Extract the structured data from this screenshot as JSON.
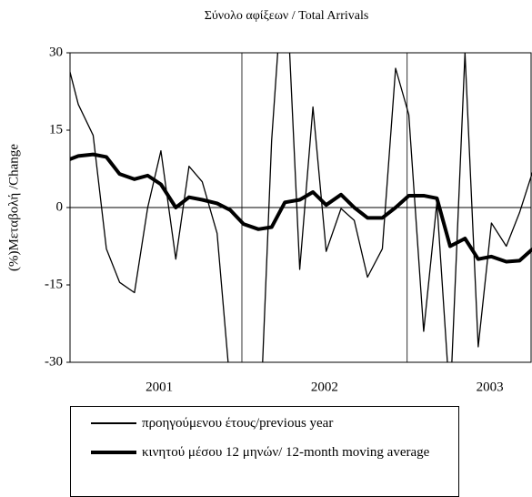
{
  "chart_data": {
    "type": "line",
    "title": "Σύνολο αφίξεων  / Total Arrivals",
    "y_label": "(%)Μεταβολή /Change",
    "x": [
      2000.93,
      2001.01,
      2001.1,
      2001.18,
      2001.26,
      2001.35,
      2001.43,
      2001.51,
      2001.6,
      2001.68,
      2001.76,
      2001.85,
      2001.93,
      2002.01,
      2002.1,
      2002.18,
      2002.26,
      2002.35,
      2002.43,
      2002.51,
      2002.6,
      2002.68,
      2002.76,
      2002.85,
      2002.93,
      2003.01,
      2003.1,
      2003.18,
      2003.26,
      2003.35,
      2003.43,
      2003.51,
      2003.6,
      2003.68,
      2003.76
    ],
    "series": [
      {
        "name": "προηγούμενου έτους/previous year",
        "color": "#000000",
        "width": 1.3,
        "values": [
          30,
          20,
          14,
          -8,
          -14.5,
          -16.5,
          0,
          11,
          -10,
          8,
          5,
          -5,
          -35,
          -45,
          -50,
          13,
          50,
          -12,
          19.5,
          -8.5,
          -0.2,
          -2.5,
          -13.5,
          -8,
          27,
          18,
          -24,
          1,
          -38,
          30,
          -27,
          -3,
          -7.5,
          -1,
          7
        ]
      },
      {
        "name": "κινητού μέσου 12 μηνών/ 12-month moving average",
        "color": "#000000",
        "width": 4,
        "values": [
          9,
          10,
          10.3,
          9.8,
          6.5,
          5.5,
          6.2,
          4.5,
          0,
          2,
          1.5,
          0.8,
          -0.5,
          -3.2,
          -4.2,
          -3.8,
          1,
          1.5,
          3,
          0.5,
          2.5,
          0,
          -2,
          -2,
          0,
          2.3,
          2.3,
          1.8,
          -7.5,
          -6,
          -10,
          -9.5,
          -10.5,
          -10.3,
          -8
        ]
      }
    ],
    "xlim": [
      2000.96,
      2003.75
    ],
    "xticks": [
      {
        "value": 2001.5,
        "label": "2001"
      },
      {
        "value": 2002.5,
        "label": "2002"
      },
      {
        "value": 2003.5,
        "label": "2003"
      }
    ],
    "vlines": [
      2002,
      2003
    ],
    "ylim": [
      -30,
      30
    ],
    "yticks": [
      -30,
      -15,
      0,
      15,
      30
    ],
    "zero_line": true
  }
}
